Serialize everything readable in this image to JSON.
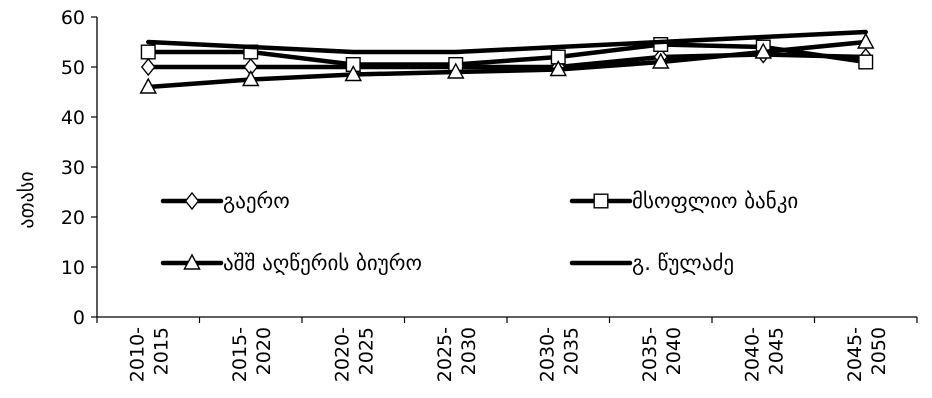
{
  "chart_data": {
    "type": "line",
    "title": "",
    "xlabel": "",
    "ylabel": "ათასი",
    "ylim": [
      0,
      60
    ],
    "yticks": [
      0,
      10,
      20,
      30,
      40,
      50,
      60
    ],
    "grid": false,
    "categories": [
      [
        "2010-",
        "2015"
      ],
      [
        "2015-",
        "2020"
      ],
      [
        "2020-",
        "2025"
      ],
      [
        "2025-",
        "2030"
      ],
      [
        "2030-",
        "2035"
      ],
      [
        "2035-",
        "2040"
      ],
      [
        "2040-",
        "2045"
      ],
      [
        "2045-",
        "2050"
      ]
    ],
    "series": [
      {
        "name": "გაერო",
        "marker": "diamond",
        "color": "#000000",
        "values": [
          50,
          50,
          50,
          50,
          50,
          52,
          52.5,
          52
        ]
      },
      {
        "name": "მსოფლიო ბანკი",
        "marker": "square",
        "color": "#000000",
        "values": [
          53,
          53,
          50.5,
          50.5,
          52,
          54.5,
          54,
          51
        ]
      },
      {
        "name": "აშშ აღწერის ბიურო",
        "marker": "triangle",
        "color": "#000000",
        "values": [
          46,
          47.5,
          48.5,
          49,
          49.5,
          51,
          53,
          55
        ]
      },
      {
        "name": "გ. წულაძე",
        "marker": "none",
        "color": "#000000",
        "values": [
          55,
          54,
          53,
          53,
          54,
          55,
          56,
          57
        ]
      }
    ],
    "legend_position": "inside-bottom"
  }
}
